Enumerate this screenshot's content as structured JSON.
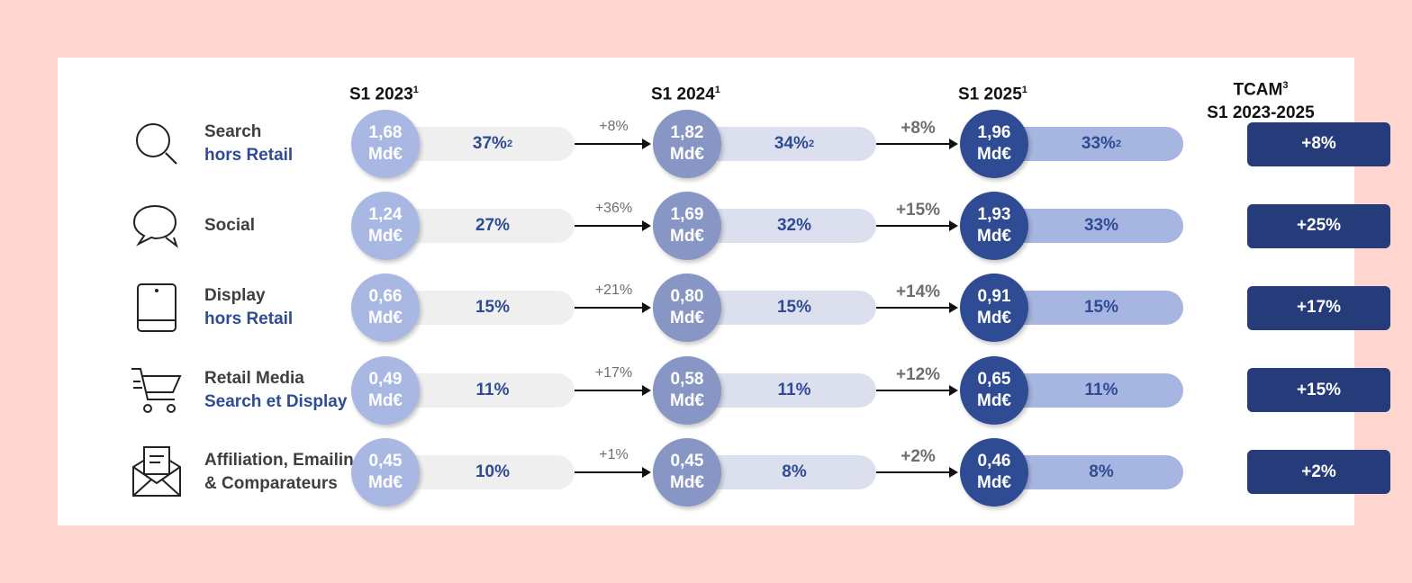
{
  "colors": {
    "background": "#FFD6CF",
    "circle_2023": "#A8B8E3",
    "circle_2024": "#8796C4",
    "circle_2025": "#2F4B93",
    "pill_2023": "#EFEFEF",
    "pill_2024": "#DCE0EE",
    "pill_2025": "#A7B6E0",
    "tcam_box": "#263C7A",
    "label_blue": "#2E4B94"
  },
  "headers": {
    "s1_2023": {
      "label": "S1 2023",
      "note": "1"
    },
    "s1_2024": {
      "label": "S1 2024",
      "note": "1"
    },
    "s1_2025": {
      "label": "S1 2025",
      "note": "1"
    },
    "tcam": {
      "label": "TCAM",
      "note": "3",
      "subtitle": "S1 2023-2025"
    }
  },
  "chart_data": {
    "type": "table",
    "title": "",
    "unit": "Md€",
    "periods": [
      "S1 2023",
      "S1 2024",
      "S1 2025"
    ],
    "rows": [
      {
        "line1": "Search",
        "line2": "hors Retail",
        "icon": "search-icon",
        "amounts": [
          "1,68",
          "1,82",
          "1,96"
        ],
        "shares": [
          "37%",
          "34%",
          "33%"
        ],
        "share_note": "2",
        "growth": [
          "+8%",
          "+8%"
        ],
        "tcam": "+8%"
      },
      {
        "line1": "Social",
        "line2": "",
        "icon": "chat-bubbles-icon",
        "amounts": [
          "1,24",
          "1,69",
          "1,93"
        ],
        "shares": [
          "27%",
          "32%",
          "33%"
        ],
        "share_note": "",
        "growth": [
          "+36%",
          "+15%"
        ],
        "tcam": "+25%"
      },
      {
        "line1": "Display",
        "line2": "hors Retail",
        "icon": "tablet-icon",
        "amounts": [
          "0,66",
          "0,80",
          "0,91"
        ],
        "shares": [
          "15%",
          "15%",
          "15%"
        ],
        "share_note": "",
        "growth": [
          "+21%",
          "+14%"
        ],
        "tcam": "+17%"
      },
      {
        "line1": "Retail Media",
        "line2": "Search et Display",
        "icon": "shopping-cart-icon",
        "amounts": [
          "0,49",
          "0,58",
          "0,65"
        ],
        "shares": [
          "11%",
          "11%",
          "11%"
        ],
        "share_note": "",
        "growth": [
          "+17%",
          "+12%"
        ],
        "tcam": "+15%"
      },
      {
        "line1": "Affiliation, Emailing",
        "line2": "& Comparateurs",
        "icon": "mail-envelope-icon",
        "amounts": [
          "0,45",
          "0,45",
          "0,46"
        ],
        "shares": [
          "10%",
          "8%",
          "8%"
        ],
        "share_note": "",
        "growth": [
          "+1%",
          "+2%"
        ],
        "tcam": "+2%"
      }
    ]
  }
}
